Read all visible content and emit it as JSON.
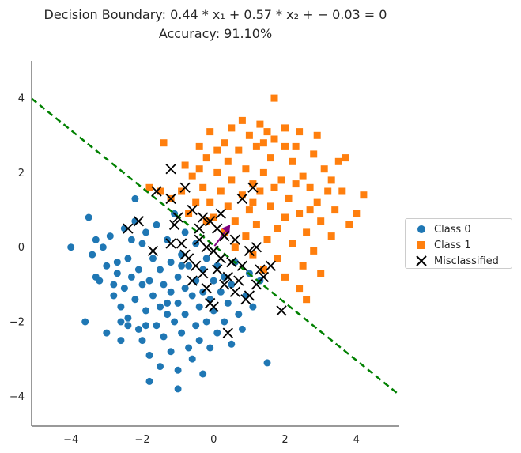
{
  "chart_data": {
    "type": "scatter",
    "title_line1": "Decision Boundary: 0.44 * x₁ + 0.57 * x₂ + − 0.03 = 0",
    "title_line2": "Accuracy: 91.10%",
    "xlabel": "",
    "ylabel": "",
    "xlim": [
      -5.1,
      5.2
    ],
    "ylim": [
      -4.8,
      5.0
    ],
    "xticks": [
      -4,
      -2,
      0,
      2,
      4
    ],
    "yticks": [
      -4,
      -2,
      0,
      2,
      4
    ],
    "grid": false,
    "legend_position": "center-right, outside plot",
    "boundary": {
      "equation_coefficients": {
        "w1": 0.44,
        "w2": 0.57,
        "b": -0.03
      },
      "style": "dashed",
      "color": "#008000",
      "normal_vector_color": "#800080"
    },
    "series": [
      {
        "name": "Class 0",
        "marker": "circle",
        "color": "#1f77b4",
        "points": [
          [
            -4.0,
            0.0
          ],
          [
            -3.5,
            0.8
          ],
          [
            -3.4,
            -0.2
          ],
          [
            -3.3,
            0.2
          ],
          [
            -3.3,
            -0.8
          ],
          [
            -3.2,
            -0.9
          ],
          [
            -3.1,
            0.0
          ],
          [
            -3.0,
            -0.5
          ],
          [
            -2.9,
            0.3
          ],
          [
            -2.8,
            -1.0
          ],
          [
            -2.8,
            -1.3
          ],
          [
            -2.7,
            -0.4
          ],
          [
            -2.7,
            -0.7
          ],
          [
            -2.6,
            -1.6
          ],
          [
            -2.6,
            -2.0
          ],
          [
            -2.5,
            0.5
          ],
          [
            -2.5,
            -1.1
          ],
          [
            -2.4,
            -0.3
          ],
          [
            -2.4,
            -1.9
          ],
          [
            -2.3,
            -0.8
          ],
          [
            -2.3,
            0.2
          ],
          [
            -2.2,
            -1.4
          ],
          [
            -2.2,
            1.3
          ],
          [
            -2.1,
            -0.6
          ],
          [
            -2.1,
            -2.2
          ],
          [
            -2.0,
            0.1
          ],
          [
            -2.0,
            -1.0
          ],
          [
            -2.0,
            -2.5
          ],
          [
            -1.9,
            -1.7
          ],
          [
            -1.9,
            0.4
          ],
          [
            -1.8,
            -0.9
          ],
          [
            -1.8,
            -2.9
          ],
          [
            -1.7,
            -1.3
          ],
          [
            -1.7,
            -0.3
          ],
          [
            -1.6,
            -2.1
          ],
          [
            -1.6,
            0.6
          ],
          [
            -1.5,
            -1.6
          ],
          [
            -1.5,
            -0.6
          ],
          [
            -1.5,
            -3.2
          ],
          [
            -1.4,
            -1.0
          ],
          [
            -1.4,
            -2.4
          ],
          [
            -1.3,
            0.2
          ],
          [
            -1.3,
            -1.8
          ],
          [
            -1.2,
            -0.4
          ],
          [
            -1.2,
            -2.8
          ],
          [
            -1.2,
            -1.2
          ],
          [
            -1.1,
            0.9
          ],
          [
            -1.1,
            -2.0
          ],
          [
            -1.0,
            -0.8
          ],
          [
            -1.0,
            -1.5
          ],
          [
            -1.0,
            -3.3
          ],
          [
            -0.9,
            -0.2
          ],
          [
            -0.9,
            -2.3
          ],
          [
            -0.8,
            -1.1
          ],
          [
            -0.8,
            0.4
          ],
          [
            -0.8,
            -1.8
          ],
          [
            -0.7,
            -2.7
          ],
          [
            -0.7,
            -0.5
          ],
          [
            -0.6,
            -1.3
          ],
          [
            -0.6,
            -3.0
          ],
          [
            -0.5,
            -0.9
          ],
          [
            -0.5,
            -2.1
          ],
          [
            -0.5,
            0.1
          ],
          [
            -0.4,
            -1.6
          ],
          [
            -0.4,
            -2.5
          ],
          [
            -0.3,
            -0.6
          ],
          [
            -0.3,
            -1.2
          ],
          [
            -0.2,
            -2.0
          ],
          [
            -0.2,
            -0.3
          ],
          [
            -0.1,
            -1.4
          ],
          [
            -0.1,
            -2.7
          ],
          [
            0.0,
            -0.9
          ],
          [
            0.0,
            -1.7
          ],
          [
            0.1,
            -2.3
          ],
          [
            0.1,
            -0.5
          ],
          [
            0.2,
            -1.2
          ],
          [
            0.3,
            -2.0
          ],
          [
            0.3,
            -0.8
          ],
          [
            0.4,
            -1.5
          ],
          [
            0.5,
            -2.6
          ],
          [
            0.5,
            -1.0
          ],
          [
            0.6,
            -0.4
          ],
          [
            0.7,
            -1.8
          ],
          [
            0.8,
            -2.2
          ],
          [
            0.9,
            -1.3
          ],
          [
            1.0,
            -0.7
          ],
          [
            1.1,
            -1.6
          ],
          [
            1.3,
            -0.9
          ],
          [
            1.5,
            -3.1
          ],
          [
            -2.2,
            0.7
          ],
          [
            -2.6,
            -2.5
          ],
          [
            -1.8,
            -3.6
          ],
          [
            -1.0,
            -3.8
          ],
          [
            -1.9,
            -2.1
          ],
          [
            -2.4,
            -2.1
          ],
          [
            -3.6,
            -2.0
          ],
          [
            -3.0,
            -2.3
          ],
          [
            -0.3,
            -3.4
          ],
          [
            -1.3,
            -1.5
          ],
          [
            -0.9,
            -0.5
          ]
        ]
      },
      {
        "name": "Class 1",
        "marker": "square",
        "color": "#ff7f0e",
        "points": [
          [
            1.7,
            4.0
          ],
          [
            1.3,
            3.3
          ],
          [
            0.8,
            3.4
          ],
          [
            1.5,
            3.1
          ],
          [
            2.0,
            3.2
          ],
          [
            -0.1,
            3.1
          ],
          [
            0.3,
            2.8
          ],
          [
            1.0,
            3.0
          ],
          [
            2.4,
            3.1
          ],
          [
            -1.4,
            2.8
          ],
          [
            -0.4,
            2.7
          ],
          [
            0.7,
            2.6
          ],
          [
            1.2,
            2.7
          ],
          [
            2.0,
            2.7
          ],
          [
            2.8,
            2.5
          ],
          [
            -0.2,
            2.4
          ],
          [
            0.4,
            2.3
          ],
          [
            1.6,
            2.4
          ],
          [
            2.2,
            2.3
          ],
          [
            3.1,
            2.1
          ],
          [
            -0.8,
            2.2
          ],
          [
            0.1,
            2.0
          ],
          [
            0.9,
            2.1
          ],
          [
            1.4,
            2.0
          ],
          [
            2.5,
            1.9
          ],
          [
            3.3,
            1.8
          ],
          [
            -0.6,
            1.9
          ],
          [
            0.5,
            1.8
          ],
          [
            1.1,
            1.7
          ],
          [
            1.9,
            1.8
          ],
          [
            2.7,
            1.6
          ],
          [
            3.6,
            1.5
          ],
          [
            4.2,
            1.4
          ],
          [
            -0.3,
            1.6
          ],
          [
            0.2,
            1.5
          ],
          [
            0.8,
            1.4
          ],
          [
            1.3,
            1.5
          ],
          [
            2.1,
            1.3
          ],
          [
            2.9,
            1.2
          ],
          [
            3.4,
            1.0
          ],
          [
            -0.1,
            1.2
          ],
          [
            0.4,
            1.1
          ],
          [
            1.0,
            1.0
          ],
          [
            1.6,
            1.1
          ],
          [
            2.4,
            0.9
          ],
          [
            3.0,
            0.7
          ],
          [
            3.8,
            0.6
          ],
          [
            0.0,
            0.8
          ],
          [
            0.6,
            0.7
          ],
          [
            1.2,
            0.6
          ],
          [
            1.8,
            0.5
          ],
          [
            2.6,
            0.4
          ],
          [
            3.3,
            0.3
          ],
          [
            0.3,
            0.4
          ],
          [
            0.9,
            0.3
          ],
          [
            1.5,
            0.2
          ],
          [
            2.2,
            0.1
          ],
          [
            2.8,
            -0.1
          ],
          [
            0.6,
            0.0
          ],
          [
            1.1,
            -0.2
          ],
          [
            1.8,
            -0.3
          ],
          [
            2.5,
            -0.5
          ],
          [
            3.0,
            -0.7
          ],
          [
            1.4,
            -0.6
          ],
          [
            2.0,
            -0.8
          ],
          [
            2.4,
            -1.1
          ],
          [
            2.6,
            -1.4
          ],
          [
            -1.8,
            1.6
          ],
          [
            -1.5,
            1.5
          ],
          [
            -1.2,
            1.3
          ],
          [
            -0.9,
            1.5
          ],
          [
            -0.5,
            1.2
          ],
          [
            -0.7,
            0.9
          ],
          [
            -0.2,
            0.7
          ],
          [
            3.5,
            2.3
          ],
          [
            2.3,
            2.7
          ],
          [
            1.7,
            2.9
          ],
          [
            0.5,
            3.2
          ],
          [
            4.0,
            0.9
          ],
          [
            3.7,
            2.4
          ],
          [
            2.9,
            3.0
          ],
          [
            1.4,
            2.8
          ],
          [
            0.1,
            2.6
          ],
          [
            -0.4,
            2.1
          ],
          [
            2.0,
            0.8
          ],
          [
            2.7,
            1.0
          ],
          [
            3.2,
            1.5
          ],
          [
            1.1,
            1.2
          ],
          [
            1.7,
            1.6
          ],
          [
            2.3,
            1.7
          ]
        ]
      },
      {
        "name": "Misclassified",
        "marker": "x",
        "color": "#000000",
        "points": [
          [
            -1.2,
            2.1
          ],
          [
            -1.6,
            1.5
          ],
          [
            -0.8,
            1.6
          ],
          [
            -1.2,
            1.3
          ],
          [
            -2.1,
            0.7
          ],
          [
            -2.4,
            0.5
          ],
          [
            -1.7,
            -0.1
          ],
          [
            -1.0,
            0.8
          ],
          [
            -1.1,
            0.6
          ],
          [
            -1.2,
            0.1
          ],
          [
            -0.6,
            1.0
          ],
          [
            -0.3,
            0.8
          ],
          [
            -0.1,
            0.7
          ],
          [
            0.1,
            0.5
          ],
          [
            0.3,
            0.3
          ],
          [
            -0.4,
            0.2
          ],
          [
            -0.2,
            0.0
          ],
          [
            0.0,
            -0.1
          ],
          [
            -0.8,
            -0.2
          ],
          [
            -0.5,
            -0.5
          ],
          [
            -0.3,
            -0.7
          ],
          [
            0.2,
            -0.3
          ],
          [
            0.5,
            -0.4
          ],
          [
            0.4,
            -0.8
          ],
          [
            0.8,
            -0.5
          ],
          [
            0.7,
            -0.9
          ],
          [
            1.0,
            -0.1
          ],
          [
            1.2,
            0.0
          ],
          [
            1.3,
            -0.6
          ],
          [
            1.6,
            -0.5
          ],
          [
            1.2,
            -1.0
          ],
          [
            1.0,
            -1.3
          ],
          [
            0.6,
            -1.2
          ],
          [
            0.9,
            -1.4
          ],
          [
            0.3,
            -1.0
          ],
          [
            0.0,
            -1.6
          ],
          [
            -0.6,
            -0.9
          ],
          [
            -0.2,
            -1.1
          ],
          [
            0.4,
            -2.3
          ],
          [
            1.9,
            -1.7
          ],
          [
            0.8,
            1.3
          ],
          [
            1.1,
            1.6
          ],
          [
            -0.4,
            0.5
          ],
          [
            0.2,
            0.9
          ],
          [
            -0.9,
            0.1
          ],
          [
            -0.7,
            -0.3
          ],
          [
            0.1,
            -0.6
          ],
          [
            0.6,
            0.2
          ],
          [
            1.4,
            -0.8
          ],
          [
            -0.1,
            -1.5
          ]
        ]
      }
    ]
  }
}
